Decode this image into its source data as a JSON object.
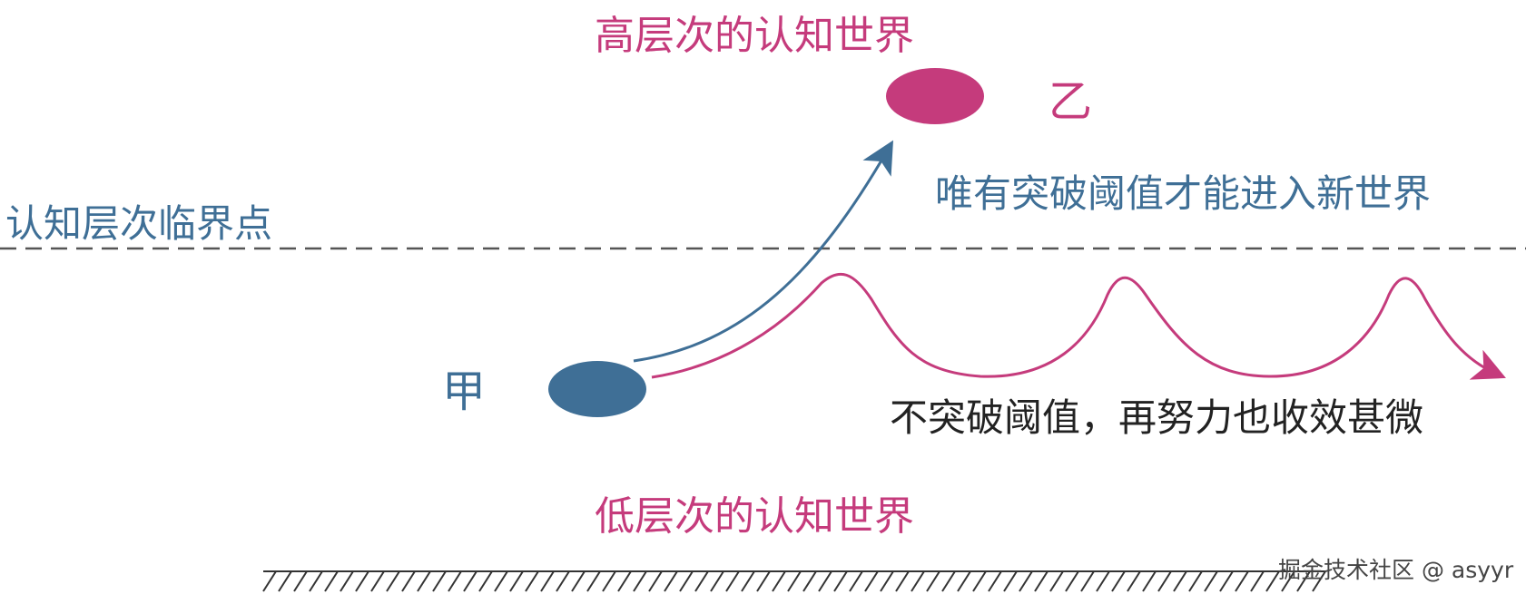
{
  "diagram": {
    "high_world_label": "高层次的认知世界",
    "low_world_label": "低层次的认知世界",
    "threshold_label": "认知层次临界点",
    "node_b_label": "乙",
    "node_a_label": "甲",
    "breakthrough_text": "唯有突破阈值才能进入新世界",
    "no_breakthrough_text": "不突破阈值，再努力也收效甚微",
    "watermark": "掘金技术社区 @ asyyr"
  },
  "colors": {
    "pink": "#c53b7c",
    "blue": "#3f6f96",
    "dark_text": "#222222",
    "dashed_line": "#555555",
    "ground": "#333333"
  }
}
